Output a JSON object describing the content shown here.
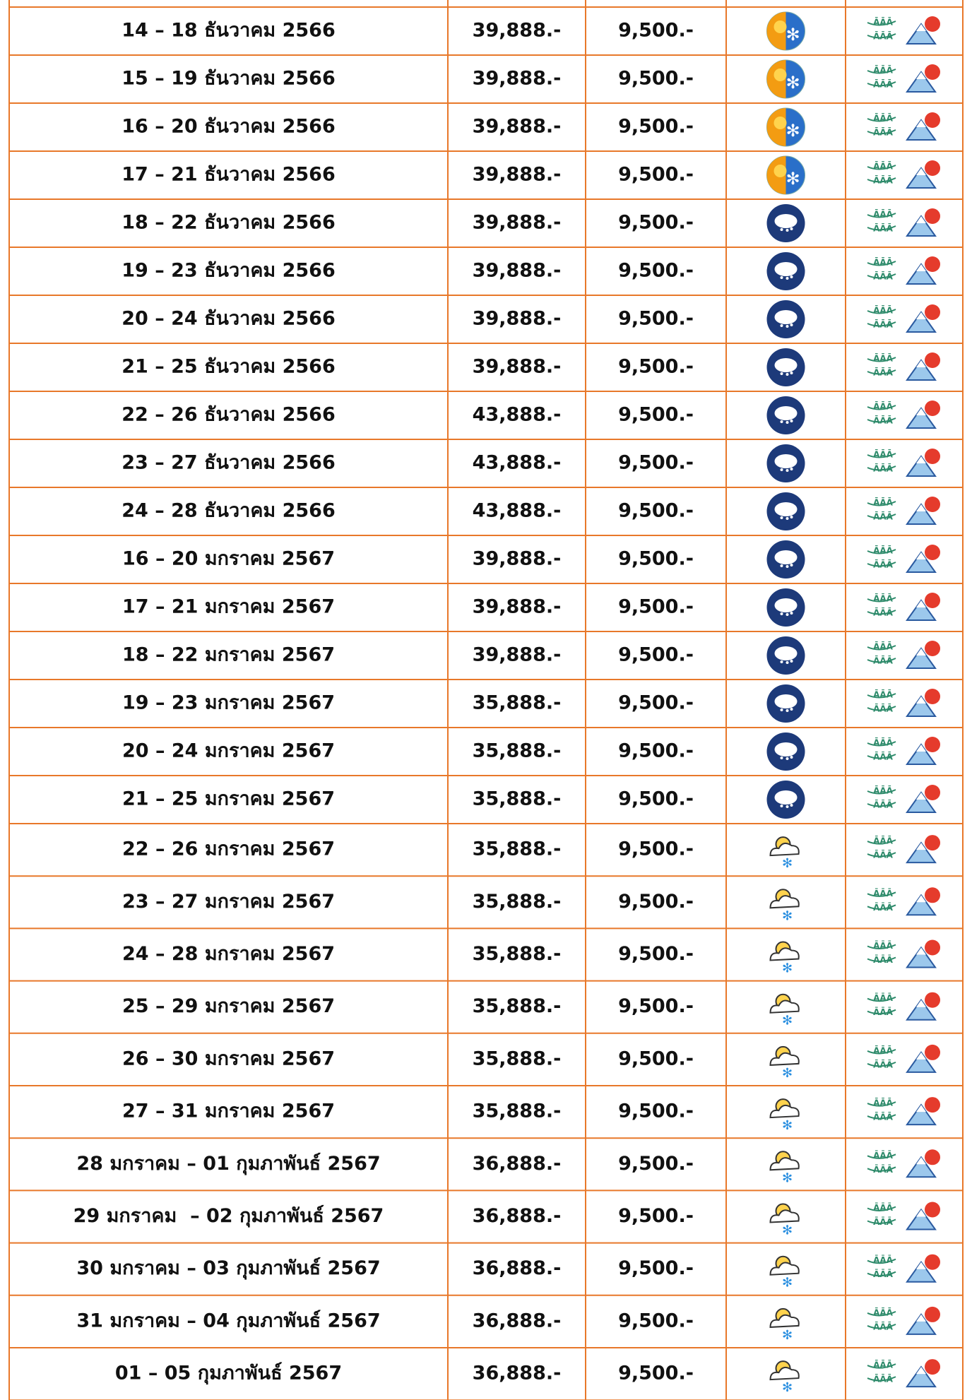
{
  "table": {
    "rows": [
      [
        "14 – 18 ธันวาคม 2566",
        "39,888.-",
        "9,500.-"
      ],
      [
        "15 – 19 ธันวาคม 2566",
        "39,888.-",
        "9,500.-"
      ],
      [
        "16 – 20 ธันวาคม 2566",
        "39,888.-",
        "9,500.-"
      ],
      [
        "17 – 21 ธันวาคม 2566",
        "39,888.-",
        "9,500.-"
      ],
      [
        "18 – 22 ธันวาคม 2566",
        "39,888.-",
        "9,500.-"
      ],
      [
        "19 – 23 ธันวาคม 2566",
        "39,888.-",
        "9,500.-"
      ],
      [
        "20 – 24 ธันวาคม 2566",
        "39,888.-",
        "9,500.-"
      ],
      [
        "21 – 25 ธันวาคม 2566",
        "39,888.-",
        "9,500.-"
      ],
      [
        "22 – 26 ธันวาคม 2566",
        "43,888.-",
        "9,500.-"
      ],
      [
        "23 – 27 ธันวาคม 2566",
        "43,888.-",
        "9,500.-"
      ],
      [
        "24 – 28 ธันวาคม 2566",
        "43,888.-",
        "9,500.-"
      ],
      [
        "16 – 20 มกราคม 2567",
        "39,888.-",
        "9,500.-"
      ],
      [
        "17 – 21 มกราคม 2567",
        "39,888.-",
        "9,500.-"
      ],
      [
        "18 – 22 มกราคม 2567",
        "39,888.-",
        "9,500.-"
      ],
      [
        "19 – 23 มกราคม 2567",
        "35,888.-",
        "9,500.-"
      ],
      [
        "20 – 24 มกราคม 2567",
        "35,888.-",
        "9,500.-"
      ],
      [
        "21 – 25 มกราคม 2567",
        "35,888.-",
        "9,500.-"
      ],
      [
        "22 – 26 มกราคม 2567",
        "35,888.-",
        "9,500.-"
      ],
      [
        "23 – 27 มกราคม 2567",
        "35,888.-",
        "9,500.-"
      ],
      [
        "24 – 28 มกราคม 2567",
        "35,888.-",
        "9,500.-"
      ],
      [
        "25 – 29 มกราคม 2567",
        "35,888.-",
        "9,500.-"
      ],
      [
        "26 – 30 มกราคม 2567",
        "35,888.-",
        "9,500.-"
      ],
      [
        "27 – 31 มกราคม 2567",
        "35,888.-",
        "9,500.-"
      ],
      [
        "28 มกราคม – 01 กุมภาพันธ์ 2567",
        "36,888.-",
        "9,500.-"
      ],
      [
        "29 มกราคม  – 02 กุมภาพันธ์ 2567",
        "36,888.-",
        "9,500.-"
      ],
      [
        "30 มกราคม – 03 กุมภาพันธ์ 2567",
        "36,888.-",
        "9,500.-"
      ],
      [
        "31 มกราคม – 04 กุมภาพันธ์ 2567",
        "36,888.-",
        "9,500.-"
      ],
      [
        "01 – 05 กุมภาพันธ์ 2567",
        "36,888.-",
        "9,500.-"
      ]
    ]
  }
}
